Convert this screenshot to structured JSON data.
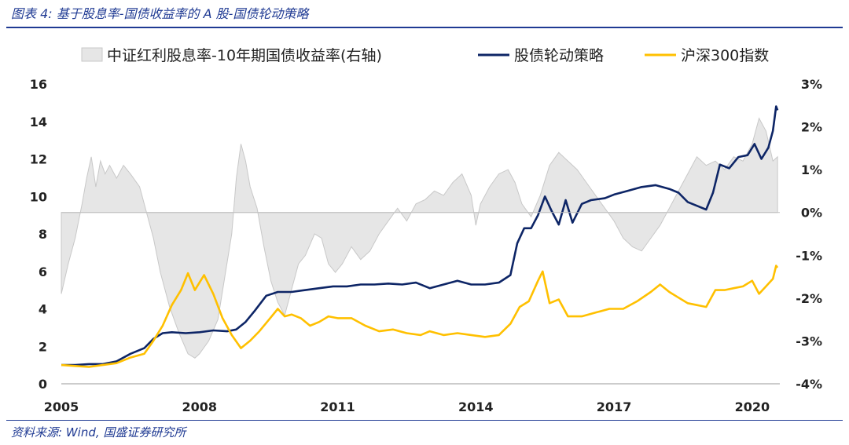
{
  "caption": "图表 4: 基于股息率-国债收益率的 A 股-国债轮动策略",
  "source": "资料来源: Wind, 国盛证券研究所",
  "chart_data": {
    "type": "line",
    "title": "",
    "x_range": [
      2005,
      2020.6
    ],
    "x_ticks": [
      "2005",
      "2008",
      "2011",
      "2014",
      "2017",
      "2020"
    ],
    "x_tick_values": [
      2005,
      2008,
      2011,
      2014,
      2017,
      2020
    ],
    "y_left": {
      "range": [
        0,
        16
      ],
      "ticks": [
        "0",
        "2",
        "4",
        "6",
        "8",
        "10",
        "12",
        "14",
        "16"
      ]
    },
    "y_right": {
      "range": [
        -0.04,
        0.03
      ],
      "ticks": [
        "-4%",
        "-3%",
        "-2%",
        "-1%",
        "0%",
        "1%",
        "2%",
        "3%"
      ]
    },
    "legend_position": "top",
    "series": [
      {
        "name": "中证红利股息率-10年期国债收益率(右轴)",
        "kind": "area",
        "axis": "right",
        "color": "#e6e6e6",
        "stroke": "#c8c8c8",
        "points": [
          [
            2005.0,
            -0.019
          ],
          [
            2005.15,
            -0.012
          ],
          [
            2005.3,
            -0.006
          ],
          [
            2005.45,
            0.002
          ],
          [
            2005.55,
            0.008
          ],
          [
            2005.65,
            0.013
          ],
          [
            2005.75,
            0.006
          ],
          [
            2005.85,
            0.012
          ],
          [
            2005.95,
            0.009
          ],
          [
            2006.05,
            0.011
          ],
          [
            2006.2,
            0.008
          ],
          [
            2006.35,
            0.011
          ],
          [
            2006.5,
            0.009
          ],
          [
            2006.7,
            0.006
          ],
          [
            2006.85,
            0.0
          ],
          [
            2007.0,
            -0.006
          ],
          [
            2007.15,
            -0.014
          ],
          [
            2007.35,
            -0.022
          ],
          [
            2007.55,
            -0.028
          ],
          [
            2007.75,
            -0.033
          ],
          [
            2007.9,
            -0.034
          ],
          [
            2008.0,
            -0.033
          ],
          [
            2008.2,
            -0.03
          ],
          [
            2008.4,
            -0.025
          ],
          [
            2008.55,
            -0.015
          ],
          [
            2008.7,
            -0.005
          ],
          [
            2008.8,
            0.008
          ],
          [
            2008.9,
            0.016
          ],
          [
            2009.0,
            0.012
          ],
          [
            2009.1,
            0.006
          ],
          [
            2009.25,
            0.001
          ],
          [
            2009.4,
            -0.008
          ],
          [
            2009.55,
            -0.016
          ],
          [
            2009.7,
            -0.021
          ],
          [
            2009.85,
            -0.024
          ],
          [
            2010.0,
            -0.018
          ],
          [
            2010.15,
            -0.012
          ],
          [
            2010.3,
            -0.01
          ],
          [
            2010.5,
            -0.005
          ],
          [
            2010.65,
            -0.006
          ],
          [
            2010.8,
            -0.012
          ],
          [
            2010.95,
            -0.014
          ],
          [
            2011.1,
            -0.012
          ],
          [
            2011.3,
            -0.008
          ],
          [
            2011.5,
            -0.011
          ],
          [
            2011.7,
            -0.009
          ],
          [
            2011.9,
            -0.005
          ],
          [
            2012.1,
            -0.002
          ],
          [
            2012.3,
            0.001
          ],
          [
            2012.5,
            -0.002
          ],
          [
            2012.7,
            0.002
          ],
          [
            2012.9,
            0.003
          ],
          [
            2013.1,
            0.005
          ],
          [
            2013.3,
            0.004
          ],
          [
            2013.5,
            0.007
          ],
          [
            2013.7,
            0.009
          ],
          [
            2013.9,
            0.004
          ],
          [
            2014.0,
            -0.003
          ],
          [
            2014.1,
            0.002
          ],
          [
            2014.3,
            0.006
          ],
          [
            2014.5,
            0.009
          ],
          [
            2014.7,
            0.01
          ],
          [
            2014.85,
            0.007
          ],
          [
            2015.0,
            0.002
          ],
          [
            2015.2,
            -0.001
          ],
          [
            2015.4,
            0.004
          ],
          [
            2015.6,
            0.011
          ],
          [
            2015.8,
            0.014
          ],
          [
            2016.0,
            0.012
          ],
          [
            2016.2,
            0.01
          ],
          [
            2016.4,
            0.007
          ],
          [
            2016.6,
            0.004
          ],
          [
            2016.8,
            0.001
          ],
          [
            2017.0,
            -0.002
          ],
          [
            2017.2,
            -0.006
          ],
          [
            2017.4,
            -0.008
          ],
          [
            2017.6,
            -0.009
          ],
          [
            2017.8,
            -0.006
          ],
          [
            2018.0,
            -0.003
          ],
          [
            2018.2,
            0.001
          ],
          [
            2018.4,
            0.005
          ],
          [
            2018.6,
            0.009
          ],
          [
            2018.8,
            0.013
          ],
          [
            2019.0,
            0.011
          ],
          [
            2019.2,
            0.012
          ],
          [
            2019.4,
            0.01
          ],
          [
            2019.6,
            0.013
          ],
          [
            2019.8,
            0.012
          ],
          [
            2020.0,
            0.016
          ],
          [
            2020.15,
            0.022
          ],
          [
            2020.3,
            0.019
          ],
          [
            2020.45,
            0.012
          ],
          [
            2020.55,
            0.013
          ]
        ]
      },
      {
        "name": "股债轮动策略",
        "kind": "line",
        "axis": "left",
        "color": "#0d2566",
        "points": [
          [
            2005.0,
            1.0
          ],
          [
            2005.3,
            1.0
          ],
          [
            2005.6,
            1.05
          ],
          [
            2005.9,
            1.05
          ],
          [
            2006.2,
            1.2
          ],
          [
            2006.5,
            1.6
          ],
          [
            2006.8,
            1.9
          ],
          [
            2007.0,
            2.4
          ],
          [
            2007.2,
            2.7
          ],
          [
            2007.4,
            2.75
          ],
          [
            2007.7,
            2.7
          ],
          [
            2008.0,
            2.75
          ],
          [
            2008.3,
            2.85
          ],
          [
            2008.6,
            2.8
          ],
          [
            2008.8,
            2.9
          ],
          [
            2009.0,
            3.3
          ],
          [
            2009.2,
            3.9
          ],
          [
            2009.45,
            4.7
          ],
          [
            2009.7,
            4.9
          ],
          [
            2010.0,
            4.9
          ],
          [
            2010.3,
            5.0
          ],
          [
            2010.6,
            5.1
          ],
          [
            2010.9,
            5.2
          ],
          [
            2011.2,
            5.2
          ],
          [
            2011.5,
            5.3
          ],
          [
            2011.8,
            5.3
          ],
          [
            2012.1,
            5.35
          ],
          [
            2012.4,
            5.3
          ],
          [
            2012.7,
            5.4
          ],
          [
            2013.0,
            5.1
          ],
          [
            2013.3,
            5.3
          ],
          [
            2013.6,
            5.5
          ],
          [
            2013.9,
            5.3
          ],
          [
            2014.2,
            5.3
          ],
          [
            2014.5,
            5.4
          ],
          [
            2014.75,
            5.8
          ],
          [
            2014.9,
            7.5
          ],
          [
            2015.05,
            8.3
          ],
          [
            2015.2,
            8.3
          ],
          [
            2015.35,
            9.0
          ],
          [
            2015.5,
            10.0
          ],
          [
            2015.65,
            9.2
          ],
          [
            2015.8,
            8.5
          ],
          [
            2015.95,
            9.8
          ],
          [
            2016.1,
            8.6
          ],
          [
            2016.3,
            9.6
          ],
          [
            2016.5,
            9.8
          ],
          [
            2016.8,
            9.9
          ],
          [
            2017.0,
            10.1
          ],
          [
            2017.3,
            10.3
          ],
          [
            2017.6,
            10.5
          ],
          [
            2017.9,
            10.6
          ],
          [
            2018.2,
            10.4
          ],
          [
            2018.4,
            10.2
          ],
          [
            2018.6,
            9.7
          ],
          [
            2018.8,
            9.5
          ],
          [
            2019.0,
            9.3
          ],
          [
            2019.15,
            10.2
          ],
          [
            2019.3,
            11.7
          ],
          [
            2019.5,
            11.5
          ],
          [
            2019.7,
            12.1
          ],
          [
            2019.9,
            12.2
          ],
          [
            2020.05,
            12.8
          ],
          [
            2020.2,
            12.0
          ],
          [
            2020.35,
            12.6
          ],
          [
            2020.45,
            13.5
          ],
          [
            2020.52,
            14.8
          ],
          [
            2020.55,
            14.6
          ]
        ]
      },
      {
        "name": "沪深300指数",
        "kind": "line",
        "axis": "left",
        "color": "#ffc000",
        "points": [
          [
            2005.0,
            1.0
          ],
          [
            2005.3,
            0.95
          ],
          [
            2005.6,
            0.9
          ],
          [
            2005.9,
            1.0
          ],
          [
            2006.2,
            1.1
          ],
          [
            2006.5,
            1.4
          ],
          [
            2006.8,
            1.6
          ],
          [
            2007.0,
            2.3
          ],
          [
            2007.2,
            3.1
          ],
          [
            2007.4,
            4.2
          ],
          [
            2007.6,
            5.0
          ],
          [
            2007.75,
            5.9
          ],
          [
            2007.9,
            5.0
          ],
          [
            2008.1,
            5.8
          ],
          [
            2008.3,
            4.8
          ],
          [
            2008.5,
            3.5
          ],
          [
            2008.7,
            2.6
          ],
          [
            2008.9,
            1.9
          ],
          [
            2009.1,
            2.3
          ],
          [
            2009.3,
            2.8
          ],
          [
            2009.5,
            3.4
          ],
          [
            2009.7,
            4.0
          ],
          [
            2009.85,
            3.6
          ],
          [
            2010.0,
            3.7
          ],
          [
            2010.2,
            3.5
          ],
          [
            2010.4,
            3.1
          ],
          [
            2010.6,
            3.3
          ],
          [
            2010.8,
            3.6
          ],
          [
            2011.0,
            3.5
          ],
          [
            2011.3,
            3.5
          ],
          [
            2011.6,
            3.1
          ],
          [
            2011.9,
            2.8
          ],
          [
            2012.2,
            2.9
          ],
          [
            2012.5,
            2.7
          ],
          [
            2012.8,
            2.6
          ],
          [
            2013.0,
            2.8
          ],
          [
            2013.3,
            2.6
          ],
          [
            2013.6,
            2.7
          ],
          [
            2013.9,
            2.6
          ],
          [
            2014.2,
            2.5
          ],
          [
            2014.5,
            2.6
          ],
          [
            2014.75,
            3.2
          ],
          [
            2014.95,
            4.1
          ],
          [
            2015.15,
            4.4
          ],
          [
            2015.35,
            5.5
          ],
          [
            2015.45,
            6.0
          ],
          [
            2015.6,
            4.3
          ],
          [
            2015.8,
            4.5
          ],
          [
            2016.0,
            3.6
          ],
          [
            2016.3,
            3.6
          ],
          [
            2016.6,
            3.8
          ],
          [
            2016.9,
            4.0
          ],
          [
            2017.2,
            4.0
          ],
          [
            2017.5,
            4.4
          ],
          [
            2017.8,
            4.9
          ],
          [
            2018.0,
            5.3
          ],
          [
            2018.2,
            4.9
          ],
          [
            2018.4,
            4.6
          ],
          [
            2018.6,
            4.3
          ],
          [
            2018.8,
            4.2
          ],
          [
            2019.0,
            4.1
          ],
          [
            2019.2,
            5.0
          ],
          [
            2019.4,
            5.0
          ],
          [
            2019.6,
            5.1
          ],
          [
            2019.8,
            5.2
          ],
          [
            2020.0,
            5.5
          ],
          [
            2020.15,
            4.8
          ],
          [
            2020.3,
            5.2
          ],
          [
            2020.45,
            5.6
          ],
          [
            2020.52,
            6.3
          ],
          [
            2020.55,
            6.2
          ]
        ]
      }
    ]
  }
}
